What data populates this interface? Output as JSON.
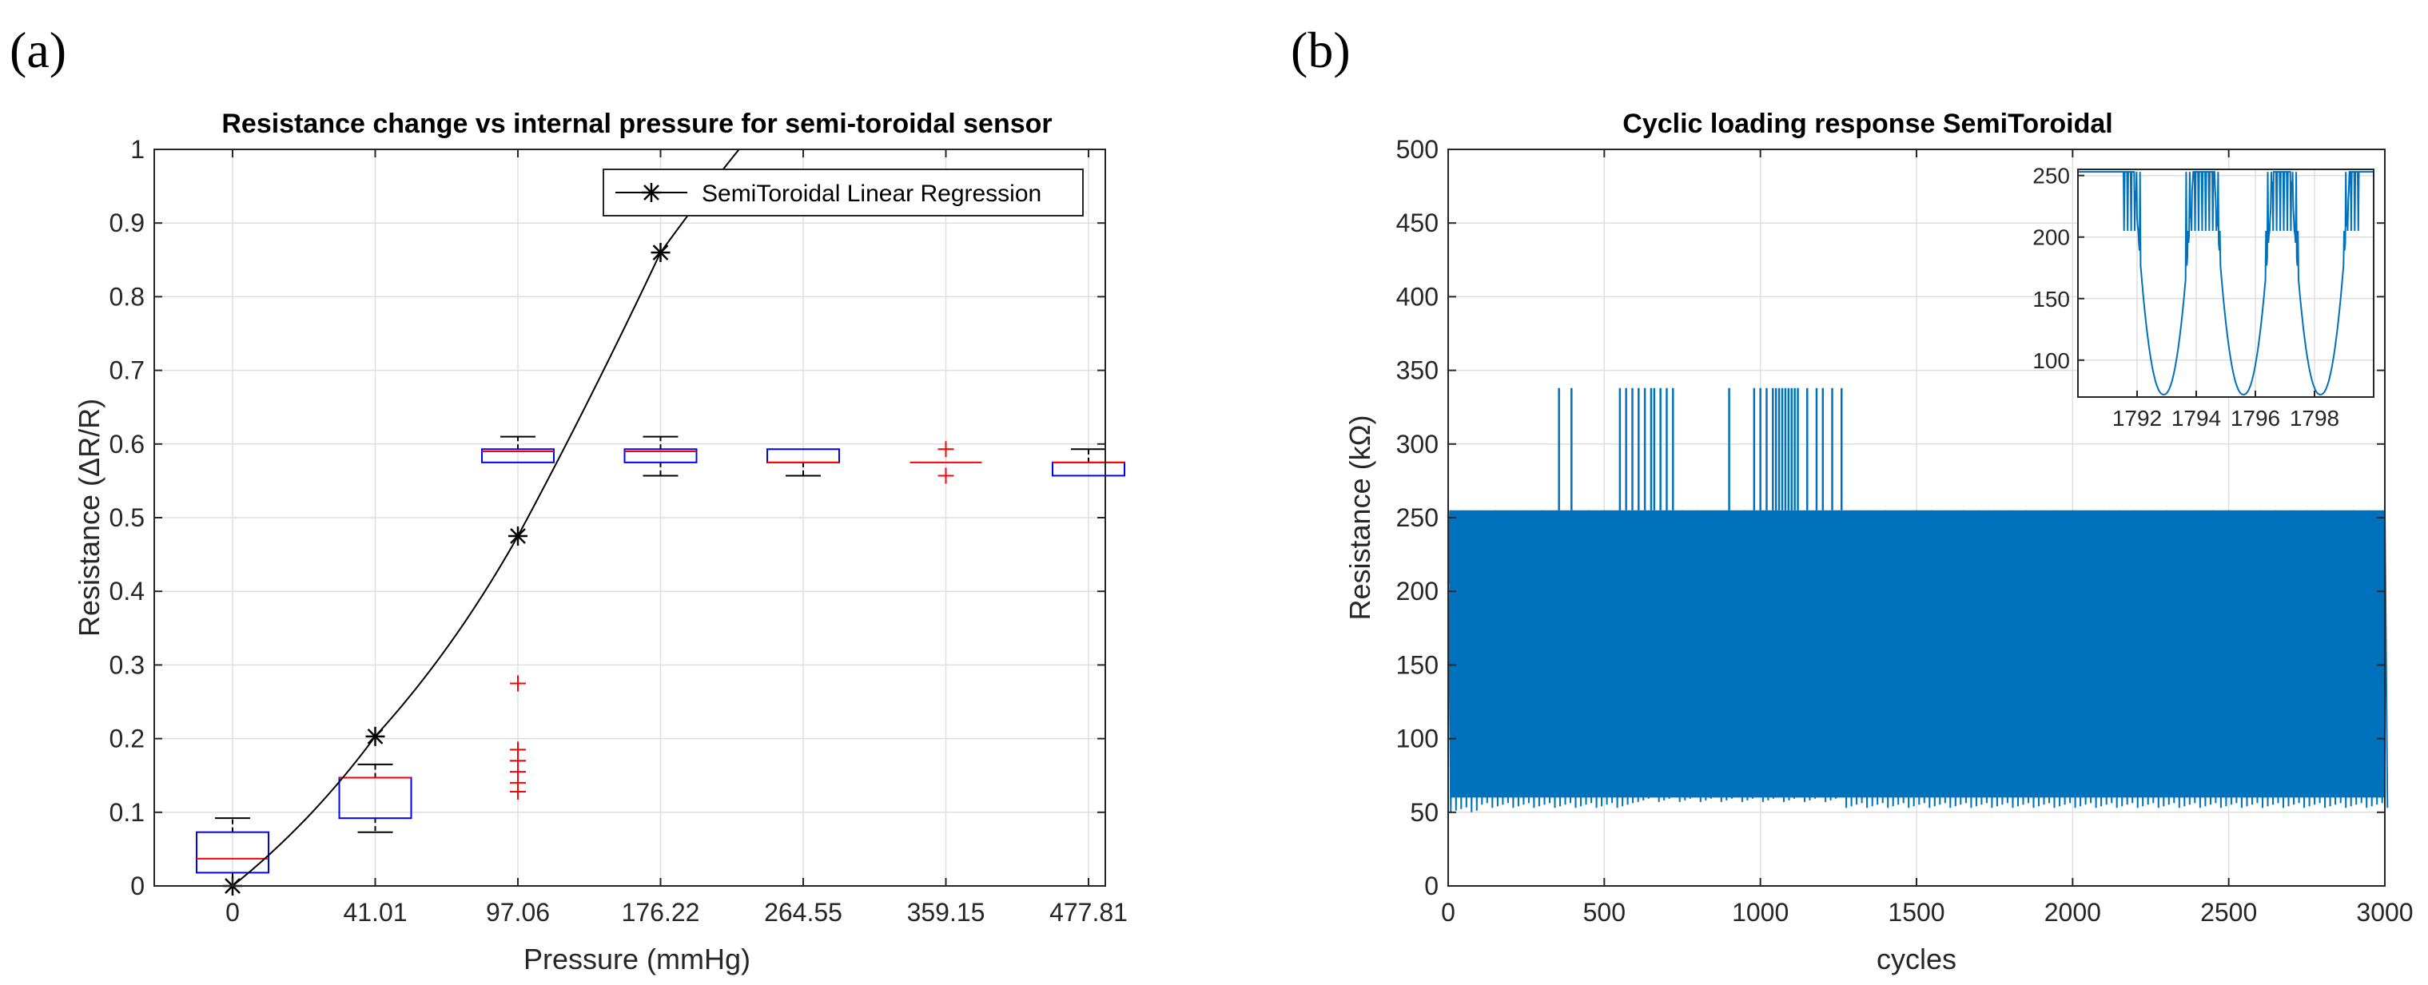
{
  "chart_data": [
    {
      "panel": "(a)",
      "type": "box",
      "title": "Resistance change vs internal pressure for semi-toroidal sensor",
      "xlabel": "Pressure (mmHg)",
      "ylabel": "Resistance (ΔR/R)",
      "ylim": [
        0,
        1
      ],
      "yticks": [
        0,
        0.1,
        0.2,
        0.3,
        0.4,
        0.5,
        0.6,
        0.7,
        0.8,
        0.9,
        1
      ],
      "ytick_labels": [
        "0",
        "0.1",
        "0.2",
        "0.3",
        "0.4",
        "0.5",
        "0.6",
        "0.7",
        "0.8",
        "0.9",
        "1"
      ],
      "categories": [
        "0",
        "41.01",
        "97.06",
        "176.22",
        "264.55",
        "359.15",
        "477.81"
      ],
      "grid": true,
      "box_color": "#0000ff",
      "median_color": "#ff0000",
      "whisker_color": "#000000",
      "outlier_color": "#ff0000",
      "boxes": [
        {
          "min": 0.0,
          "q1": 0.018,
          "median": 0.037,
          "q3": 0.073,
          "max": 0.092,
          "outliers": []
        },
        {
          "min": 0.073,
          "q1": 0.092,
          "median": 0.147,
          "q3": 0.147,
          "max": 0.165,
          "outliers": []
        },
        {
          "min": 0.575,
          "q1": 0.575,
          "median": 0.59,
          "q3": 0.593,
          "max": 0.61,
          "outliers": [
            0.275,
            0.185,
            0.17,
            0.155,
            0.14,
            0.128
          ]
        },
        {
          "min": 0.557,
          "q1": 0.575,
          "median": 0.59,
          "q3": 0.593,
          "max": 0.61,
          "outliers": []
        },
        {
          "min": 0.557,
          "q1": 0.575,
          "median": 0.575,
          "q3": 0.593,
          "max": 0.593,
          "outliers": []
        },
        {
          "min": 0.575,
          "q1": 0.575,
          "median": 0.575,
          "q3": 0.575,
          "max": 0.575,
          "outliers": [
            0.593,
            0.557
          ]
        },
        {
          "min": 0.557,
          "q1": 0.557,
          "median": 0.575,
          "q3": 0.575,
          "max": 0.593,
          "outliers": []
        }
      ],
      "series": [
        {
          "name": "SemiToroidal Linear Regression",
          "color": "#000000",
          "marker": "*",
          "points": [
            [
              0,
              0.0
            ],
            [
              1,
              0.203
            ],
            [
              2,
              0.475
            ],
            [
              3,
              0.86
            ]
          ],
          "extends_to": [
            3.55,
            1.0
          ]
        }
      ],
      "legend": {
        "label": "SemiToroidal Linear Regression",
        "position": "top-right"
      }
    },
    {
      "panel": "(b)",
      "type": "line",
      "title": "Cyclic loading response SemiToroidal",
      "xlabel": "cycles",
      "ylabel": "Resistance (kΩ)",
      "xlim": [
        0,
        3000
      ],
      "ylim": [
        0,
        500
      ],
      "xticks": [
        0,
        500,
        1000,
        1500,
        2000,
        2500,
        3000
      ],
      "xtick_labels": [
        "0",
        "500",
        "1000",
        "1500",
        "2000",
        "2500",
        "3000"
      ],
      "yticks": [
        0,
        50,
        100,
        150,
        200,
        250,
        300,
        350,
        400,
        450,
        500
      ],
      "ytick_labels": [
        "0",
        "50",
        "100",
        "150",
        "200",
        "250",
        "300",
        "350",
        "400",
        "450",
        "500"
      ],
      "grid": true,
      "series_color": "#0072bd",
      "band": {
        "x_start": 0,
        "x_end": 3000,
        "upper": 255,
        "lower_start": 50,
        "lower_middle": 57,
        "lower_middle_range": [
          600,
          1250
        ],
        "lower_end": 53
      },
      "spike_value": 338,
      "spike_x": [
        355,
        395,
        550,
        570,
        590,
        610,
        630,
        650,
        660,
        680,
        700,
        720,
        900,
        980,
        1000,
        1020,
        1040,
        1050,
        1060,
        1070,
        1080,
        1090,
        1100,
        1110,
        1120,
        1150,
        1180,
        1200,
        1230,
        1260
      ],
      "inset": {
        "xlim": [
          1790,
          1800
        ],
        "ylim": [
          70,
          255
        ],
        "xticks": [
          1792,
          1794,
          1796,
          1798
        ],
        "xtick_labels": [
          "1792",
          "1794",
          "1796",
          "1798"
        ],
        "yticks": [
          100,
          150,
          200,
          250
        ],
        "ytick_labels": [
          "100",
          "150",
          "200",
          "250"
        ],
        "valley_centers": [
          1792.9,
          1795.6,
          1798.2
        ],
        "min_value": 72,
        "max_value": 253
      }
    }
  ]
}
